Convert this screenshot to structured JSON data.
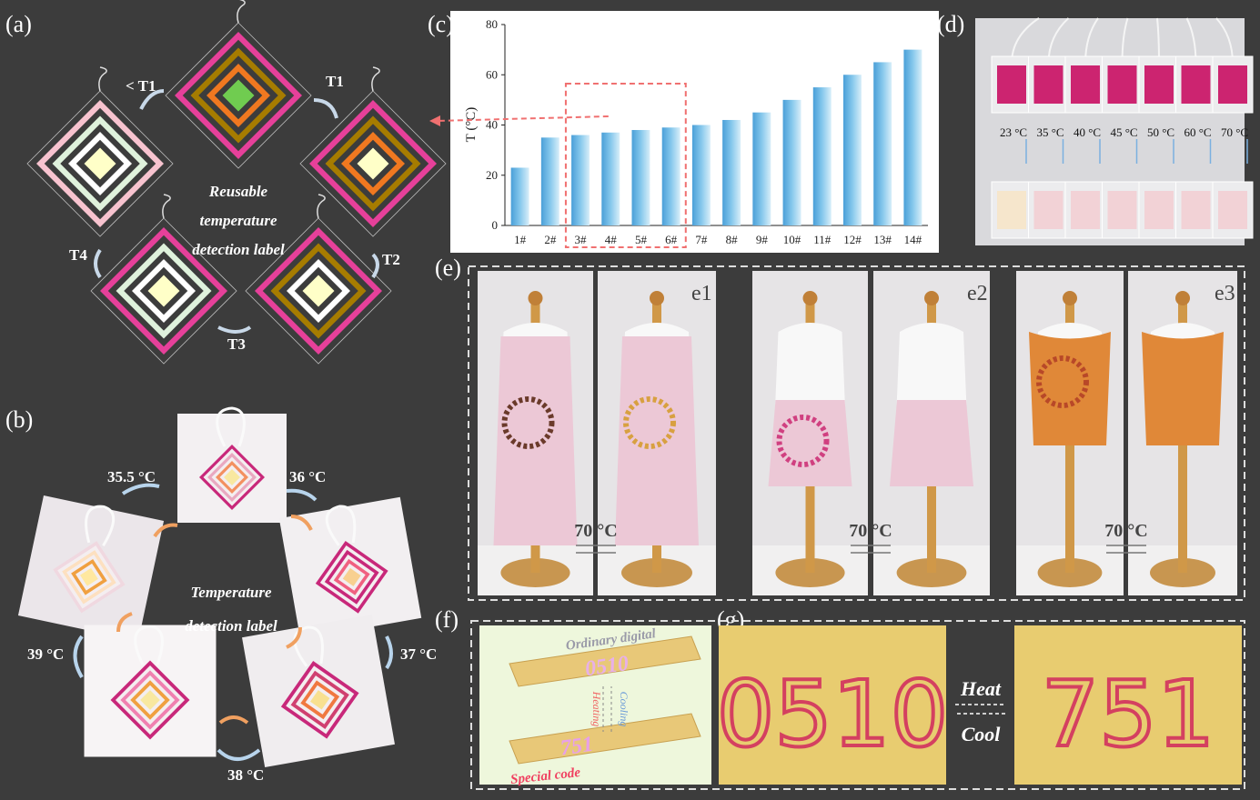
{
  "chart_data": {
    "type": "bar",
    "label": "(c)",
    "ylabel": "T (°C)",
    "categories": [
      "1#",
      "2#",
      "3#",
      "4#",
      "5#",
      "6#",
      "7#",
      "8#",
      "9#",
      "10#",
      "11#",
      "12#",
      "13#",
      "14#"
    ],
    "values": [
      23,
      35,
      36,
      37,
      38,
      39,
      40,
      42,
      45,
      50,
      55,
      60,
      65,
      70
    ],
    "ylim": [
      0,
      80
    ],
    "yticks": [
      0,
      20,
      40,
      60,
      80
    ],
    "color": "#86c8ec"
  },
  "panel_a": {
    "label": "(a)",
    "caption": [
      "Reusable",
      "temperature",
      "detection label"
    ],
    "transitions": [
      "< T1",
      "T1",
      "T2",
      "T3",
      "T4"
    ]
  },
  "panel_b": {
    "label": "(b)",
    "caption": [
      "Temperature",
      "detection label"
    ],
    "temperatures": [
      "35.5 °C",
      "36 °C",
      "37 °C",
      "38 °C",
      "39 °C"
    ]
  },
  "panel_d": {
    "label": "(d)",
    "temperatures": [
      "23 °C",
      "35 °C",
      "40 °C",
      "45 °C",
      "50 °C",
      "60 °C",
      "70 °C"
    ]
  },
  "panel_e": {
    "label": "(e)",
    "sublabels": [
      "e1",
      "e2",
      "e3"
    ],
    "temperature": "70 °C"
  },
  "panel_f": {
    "label": "(f)",
    "top": "Ordinary digital",
    "top_code": "0510",
    "heating": "Heating",
    "cooling": "Cooling",
    "bottom_code": "751",
    "bottom": "Special code"
  },
  "panel_g": {
    "label": "(g)",
    "before": "0510",
    "after": "751",
    "heat": "Heat",
    "cool": "Cool"
  }
}
